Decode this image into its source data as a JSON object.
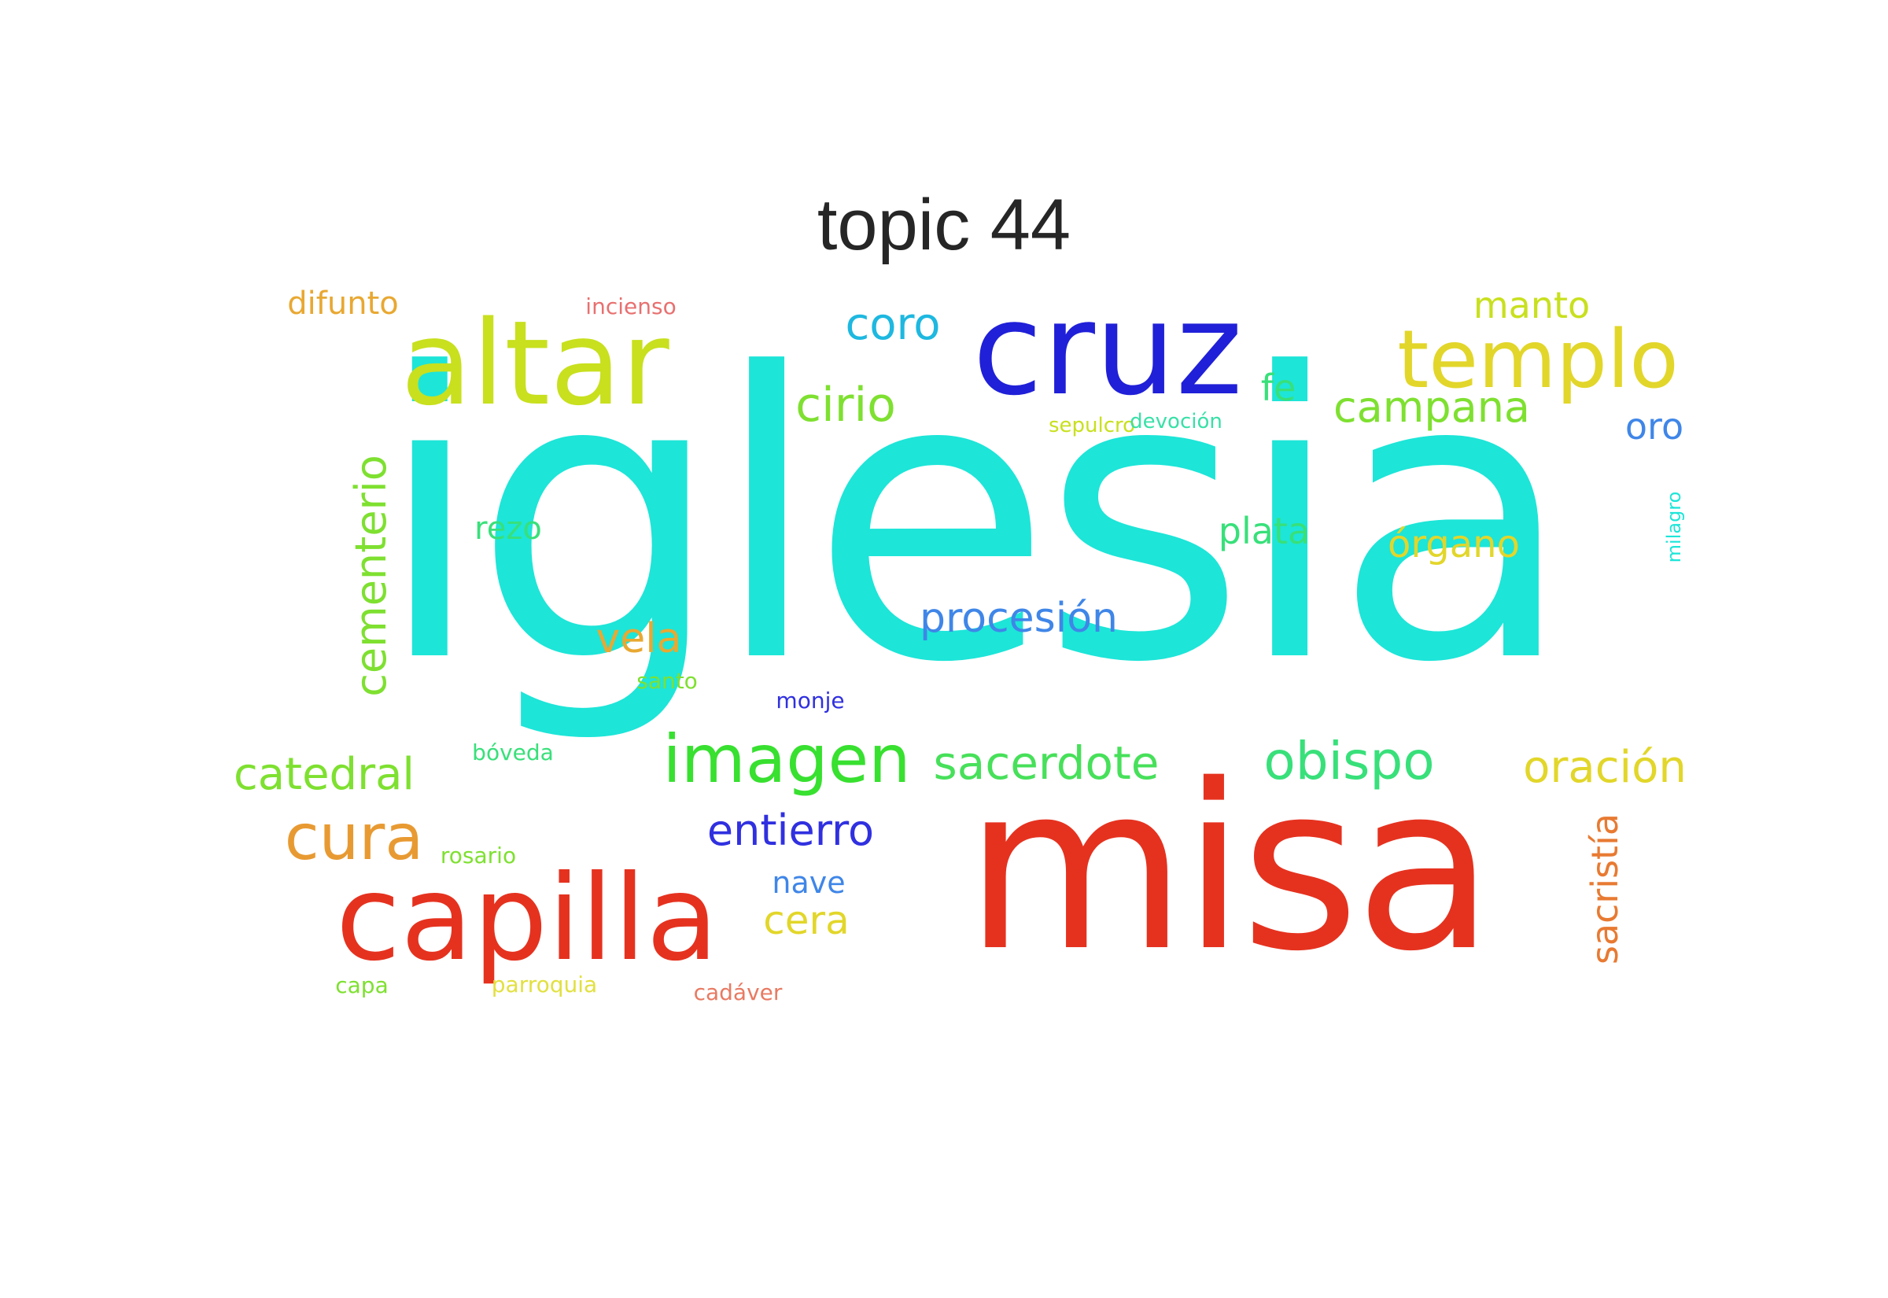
{
  "title": "topic 44",
  "words": {
    "iglesia": {
      "text": "iglesia",
      "color": "#1de5d8",
      "rank": 1
    },
    "misa": {
      "text": "misa",
      "color": "#e5321f",
      "rank": 2
    },
    "cruz": {
      "text": "cruz",
      "color": "#2020d8",
      "rank": 3
    },
    "altar": {
      "text": "altar",
      "color": "#c8e01e",
      "rank": 4
    },
    "capilla": {
      "text": "capilla",
      "color": "#e5321f",
      "rank": 5
    },
    "templo": {
      "text": "templo",
      "color": "#e2d62a",
      "rank": 6
    },
    "imagen": {
      "text": "imagen",
      "color": "#38e030",
      "rank": 7
    },
    "cura": {
      "text": "cura",
      "color": "#e89a32",
      "rank": 8
    },
    "obispo": {
      "text": "obispo",
      "color": "#38e07a",
      "rank": 9
    },
    "sacerdote": {
      "text": "sacerdote",
      "color": "#47e05a",
      "rank": 10
    },
    "oracion": {
      "text": "oración",
      "color": "#e2d62a",
      "rank": 11
    },
    "cirio": {
      "text": "cirio",
      "color": "#7ee030",
      "rank": 12
    },
    "catedral": {
      "text": "catedral",
      "color": "#7ee030",
      "rank": 13
    },
    "coro": {
      "text": "coro",
      "color": "#1eb8e0",
      "rank": 14
    },
    "cementerio": {
      "text": "cementerio",
      "color": "#7ee030",
      "rank": 15
    },
    "procesion": {
      "text": "procesión",
      "color": "#3f86e8",
      "rank": 16
    },
    "campana": {
      "text": "campana",
      "color": "#7ee030",
      "rank": 17
    },
    "entierro": {
      "text": "entierro",
      "color": "#3030e0",
      "rank": 18
    },
    "vela": {
      "text": "vela",
      "color": "#e8a832",
      "rank": 19
    },
    "cera": {
      "text": "cera",
      "color": "#e2d62a",
      "rank": 20
    },
    "organo": {
      "text": "órgano",
      "color": "#e2d62a",
      "rank": 21
    },
    "sacristia": {
      "text": "sacristía",
      "color": "#e87a32",
      "rank": 22
    },
    "manto": {
      "text": "manto",
      "color": "#c8e01e",
      "rank": 23
    },
    "oro": {
      "text": "oro",
      "color": "#3f86e8",
      "rank": 24
    },
    "fe": {
      "text": "fe",
      "color": "#38e07a",
      "rank": 25
    },
    "plata": {
      "text": "plata",
      "color": "#38e07a",
      "rank": 26
    },
    "difunto": {
      "text": "difunto",
      "color": "#e8a832",
      "rank": 27
    },
    "rezo": {
      "text": "rezo",
      "color": "#38e07a",
      "rank": 28
    },
    "nave": {
      "text": "nave",
      "color": "#3f86e8",
      "rank": 29
    },
    "incienso": {
      "text": "incienso",
      "color": "#e87070",
      "rank": 30
    },
    "sepulcro": {
      "text": "sepulcro",
      "color": "#c8e01e",
      "rank": 31
    },
    "devocion": {
      "text": "devoción",
      "color": "#38e0a8",
      "rank": 32
    },
    "milagro": {
      "text": "milagro",
      "color": "#1de5d8",
      "rank": 33
    },
    "santo": {
      "text": "santo",
      "color": "#7ee030",
      "rank": 34
    },
    "monje": {
      "text": "monje",
      "color": "#3030e0",
      "rank": 35
    },
    "boveda": {
      "text": "bóveda",
      "color": "#38e07a",
      "rank": 36
    },
    "rosario": {
      "text": "rosario",
      "color": "#7ee030",
      "rank": 37
    },
    "capa": {
      "text": "capa",
      "color": "#7ee030",
      "rank": 38
    },
    "parroquia": {
      "text": "parroquia",
      "color": "#e2e040",
      "rank": 39
    },
    "cadaver": {
      "text": "cadáver",
      "color": "#e87a62",
      "rank": 40
    }
  }
}
